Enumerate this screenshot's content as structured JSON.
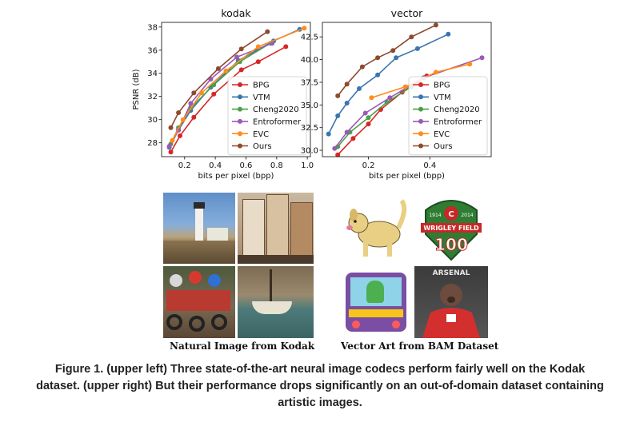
{
  "chart_data": [
    {
      "type": "line",
      "title": "kodak",
      "xlabel": "bits per pixel (bpp)",
      "ylabel": "PSNR (dB)",
      "xlim": [
        0.05,
        1.02
      ],
      "ylim": [
        26.8,
        38.4
      ],
      "xticks": [
        0.2,
        0.4,
        0.6,
        0.8,
        1.0
      ],
      "yticks": [
        28,
        30,
        32,
        34,
        36,
        38
      ],
      "xtick_labels": [
        "0.2",
        "0.4",
        "0.6",
        "0.8",
        "1.0"
      ],
      "ytick_labels": [
        "28",
        "30",
        "32",
        "34",
        "36",
        "38"
      ],
      "grid": false,
      "legend_position": "bottom-right",
      "series": [
        {
          "name": "BPG",
          "color": "#d62728",
          "x": [
            0.11,
            0.17,
            0.26,
            0.39,
            0.57,
            0.68,
            0.86
          ],
          "y": [
            27.2,
            28.6,
            30.2,
            32.2,
            34.3,
            35.0,
            36.3
          ]
        },
        {
          "name": "VTM",
          "color": "#3a75b0",
          "x": [
            0.1,
            0.16,
            0.24,
            0.37,
            0.55,
            0.78,
            0.95
          ],
          "y": [
            27.6,
            29.1,
            30.8,
            32.8,
            35.1,
            36.8,
            37.8
          ]
        },
        {
          "name": "Cheng2020",
          "color": "#4aa04a",
          "x": [
            0.11,
            0.16,
            0.24,
            0.39,
            0.56,
            0.76
          ],
          "y": [
            27.9,
            29.3,
            31.0,
            33.0,
            35.0,
            36.6
          ]
        },
        {
          "name": "Entroformer",
          "color": "#9b59b6",
          "x": [
            0.1,
            0.16,
            0.24,
            0.37,
            0.54,
            0.77
          ],
          "y": [
            27.7,
            29.1,
            31.4,
            33.5,
            35.4,
            36.6
          ]
        },
        {
          "name": "EVC",
          "color": "#ff8c1a",
          "x": [
            0.12,
            0.19,
            0.31,
            0.47,
            0.68,
            0.98
          ],
          "y": [
            28.2,
            30.0,
            32.3,
            34.2,
            36.3,
            37.9
          ]
        },
        {
          "name": "Ours",
          "color": "#8c4a2f",
          "x": [
            0.11,
            0.16,
            0.26,
            0.42,
            0.57,
            0.74
          ],
          "y": [
            29.3,
            30.6,
            32.3,
            34.4,
            36.1,
            37.6
          ]
        }
      ]
    },
    {
      "type": "line",
      "title": "vector",
      "xlabel": "bits per pixel (bpp)",
      "ylabel": "",
      "xlim": [
        0.05,
        0.6
      ],
      "ylim": [
        29.3,
        44.1
      ],
      "xticks": [
        0.2,
        0.4
      ],
      "yticks": [
        30.0,
        32.5,
        35.0,
        37.5,
        40.0,
        42.5
      ],
      "xtick_labels": [
        "0.2",
        "0.4"
      ],
      "ytick_labels": [
        "30.0",
        "32.5",
        "35.0",
        "37.5",
        "40.0",
        "42.5"
      ],
      "grid": false,
      "legend_position": "bottom-right",
      "series": [
        {
          "name": "BPG",
          "color": "#d62728",
          "x": [
            0.1,
            0.15,
            0.2,
            0.24,
            0.31,
            0.39
          ],
          "y": [
            29.5,
            31.3,
            32.9,
            34.5,
            36.4,
            38.2
          ]
        },
        {
          "name": "VTM",
          "color": "#3a75b0",
          "x": [
            0.07,
            0.1,
            0.13,
            0.17,
            0.23,
            0.29,
            0.36,
            0.46
          ],
          "y": [
            31.8,
            33.8,
            35.2,
            36.8,
            38.3,
            40.2,
            41.2,
            42.8
          ]
        },
        {
          "name": "Cheng2020",
          "color": "#4aa04a",
          "x": [
            0.1,
            0.14,
            0.2,
            0.26,
            0.34
          ],
          "y": [
            30.4,
            32.0,
            33.6,
            35.3,
            37.0
          ]
        },
        {
          "name": "Entroformer",
          "color": "#9b59b6",
          "x": [
            0.09,
            0.13,
            0.19,
            0.27,
            0.38,
            0.57
          ],
          "y": [
            30.2,
            32.0,
            34.1,
            35.8,
            38.0,
            40.2
          ]
        },
        {
          "name": "EVC",
          "color": "#ff8c1a",
          "x": [
            0.21,
            0.32,
            0.42,
            0.53
          ],
          "y": [
            35.8,
            37.0,
            38.6,
            39.5
          ]
        },
        {
          "name": "Ours",
          "color": "#8c4a2f",
          "x": [
            0.1,
            0.13,
            0.18,
            0.23,
            0.28,
            0.34,
            0.42
          ],
          "y": [
            36.0,
            37.3,
            39.2,
            40.2,
            41.0,
            42.5,
            43.8
          ]
        }
      ]
    }
  ],
  "image_panels": {
    "left_caption": "Natural Image from Kodak",
    "right_caption": "Vector Art from BAM Dataset",
    "badge_text_top_left": "1914",
    "badge_text_top_right": "2014",
    "badge_banner": "WRIGLEY FIELD",
    "badge_number": "100",
    "poster_title": "ARSENAL"
  },
  "figure_caption": "Figure 1. (upper left) Three state-of-the-art neural image codecs perform fairly well on the Kodak dataset. (upper right) But their performance drops significantly on an out-of-domain dataset containing artistic images."
}
